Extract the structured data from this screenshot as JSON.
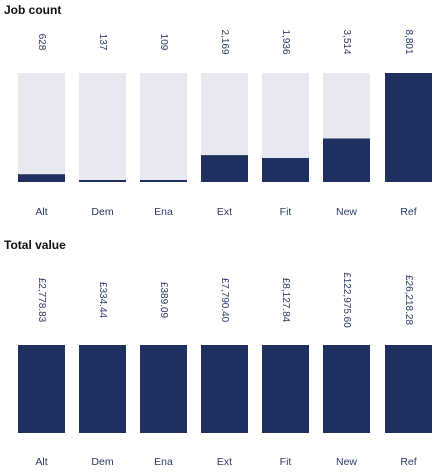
{
  "colors": {
    "fill": "#1f3060",
    "track": "#e8e9f0",
    "text": "#2b3a67"
  },
  "chart_data": [
    {
      "type": "bar",
      "title": "Job count",
      "categories": [
        "Alt",
        "Dem",
        "Ena",
        "Ext",
        "Fit",
        "New",
        "Ref"
      ],
      "values": [
        628,
        137,
        109,
        2169,
        1936,
        3514,
        8801
      ],
      "value_labels": [
        "628",
        "137",
        "109",
        "2,169",
        "1,936",
        "3,514",
        "8,801"
      ],
      "ylim": [
        0,
        8801
      ],
      "grid": false
    },
    {
      "type": "bar",
      "title": "Total value",
      "categories": [
        "Alt",
        "Dem",
        "Ena",
        "Ext",
        "Fit",
        "New",
        "Ref"
      ],
      "values": [
        2778.83,
        334.44,
        389.09,
        7790.4,
        8127.84,
        122975.6,
        26218.28
      ],
      "value_labels": [
        "£2,778.83",
        "£334.44",
        "£389.09",
        "£7,790.40",
        "£8,127.84",
        "£122,975.60",
        "£26,218.28"
      ],
      "grid": false
    }
  ]
}
